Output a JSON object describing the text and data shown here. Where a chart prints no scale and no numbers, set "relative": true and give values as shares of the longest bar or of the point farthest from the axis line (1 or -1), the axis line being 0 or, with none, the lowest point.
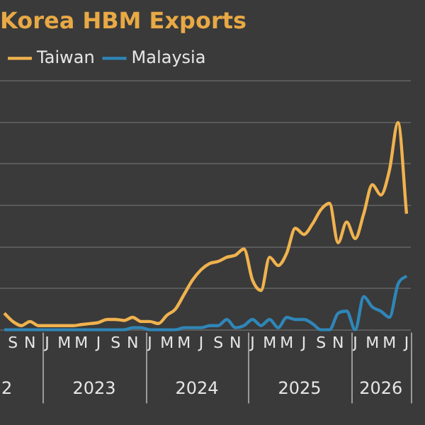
{
  "chart_data": {
    "type": "line",
    "title": "Korea HBM Exports",
    "relative": true,
    "grid": "y",
    "legend": "top left",
    "marker": "none",
    "line_style": "solid",
    "categories": [
      null,
      "S",
      null,
      "N",
      null,
      "J",
      null,
      "M",
      null,
      "M",
      null,
      "J",
      null,
      "S",
      null,
      "N",
      null,
      "J",
      null,
      "M",
      null,
      "M",
      null,
      "J",
      null,
      "S",
      null,
      "N",
      null,
      "J",
      null,
      "M",
      null,
      "M",
      null,
      "J",
      null,
      "S",
      null,
      "N",
      null,
      "J",
      null,
      "M",
      null,
      "M",
      null,
      "J"
    ],
    "annotations": [
      "2",
      "2023",
      "2024",
      "2025",
      "2026"
    ],
    "series": [
      {
        "name": "Taiwan",
        "color": "#f0b24e",
        "values": [
          0.08,
          0.04,
          0.02,
          0.04,
          0.02,
          0.02,
          0.02,
          0.02,
          0.02,
          0.025,
          0.03,
          0.035,
          0.05,
          0.05,
          0.045,
          0.06,
          0.04,
          0.04,
          0.03,
          0.07,
          0.1,
          0.17,
          0.24,
          0.29,
          0.32,
          0.33,
          0.35,
          0.36,
          0.39,
          0.24,
          0.19,
          0.35,
          0.31,
          0.37,
          0.49,
          0.46,
          0.51,
          0.58,
          0.61,
          0.42,
          0.52,
          0.44,
          0.56,
          0.7,
          0.65,
          0.77,
          1,
          0.56
        ]
      },
      {
        "name": "Malaysia",
        "color": "#2f86b8",
        "values": [
          0,
          0,
          0,
          0,
          0,
          0,
          0,
          0,
          0,
          0,
          0,
          0,
          0,
          0,
          0,
          0.01,
          0.01,
          0,
          0,
          0,
          0,
          0.01,
          0.01,
          0.01,
          0.02,
          0.02,
          0.05,
          0.01,
          0.02,
          0.05,
          0.02,
          0.05,
          0.01,
          0.06,
          0.05,
          0.05,
          0.03,
          0,
          0,
          0.08,
          0.09,
          0,
          0.16,
          0.11,
          0.09,
          0.06,
          0.22,
          0.26
        ]
      }
    ]
  }
}
